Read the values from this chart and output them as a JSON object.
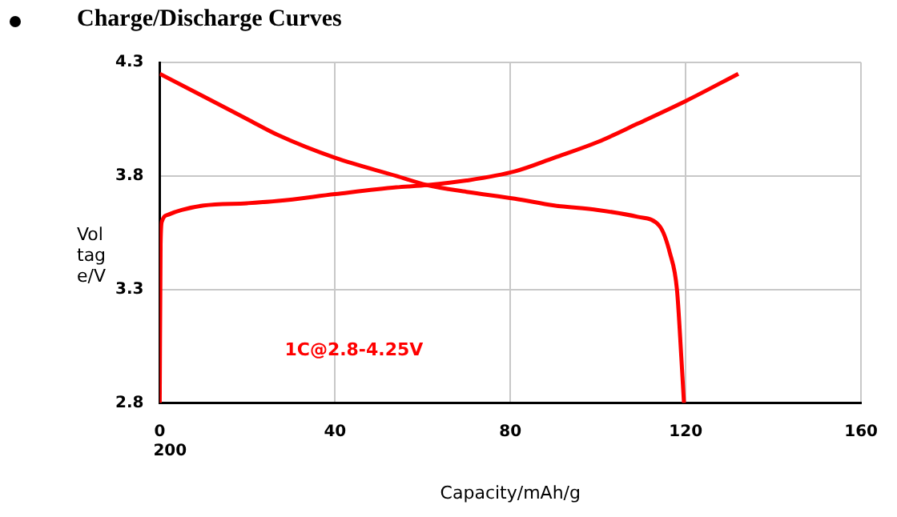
{
  "chart_data": {
    "type": "line",
    "title": "Charge/Discharge Curves",
    "xlabel": "Capacity/mAh/g",
    "ylabel": "Voltage/V",
    "xlim": [
      0,
      160
    ],
    "xticks": [
      0,
      40,
      80,
      120,
      160
    ],
    "ylim": [
      2.8,
      4.3
    ],
    "yticks": [
      2.8,
      3.3,
      3.8,
      4.3
    ],
    "grid": true,
    "legend": false,
    "marker": "none",
    "line_style": "solid",
    "annotations": [
      "1C@2.8-4.25V",
      "200"
    ],
    "series": [
      {
        "color": "#ff0000",
        "x": [
          0,
          0.2,
          0.5,
          2,
          5,
          10,
          20,
          27,
          40,
          54,
          61,
          70,
          81,
          90,
          100,
          109,
          120,
          132
        ],
        "values": [
          2.8,
          3.5,
          3.6,
          3.63,
          3.65,
          3.67,
          3.68,
          3.69,
          3.72,
          3.75,
          3.76,
          3.78,
          3.82,
          3.88,
          3.95,
          4.03,
          4.13,
          4.25
        ]
      },
      {
        "color": "#ff0000",
        "x": [
          0,
          10,
          20,
          27,
          40,
          54,
          61,
          70,
          81,
          90,
          100,
          109,
          114,
          116.4,
          118,
          119,
          119.6
        ],
        "values": [
          4.25,
          4.15,
          4.05,
          3.98,
          3.88,
          3.8,
          3.76,
          3.73,
          3.7,
          3.67,
          3.65,
          3.62,
          3.58,
          3.46,
          3.3,
          3.0,
          2.8
        ]
      }
    ]
  }
}
